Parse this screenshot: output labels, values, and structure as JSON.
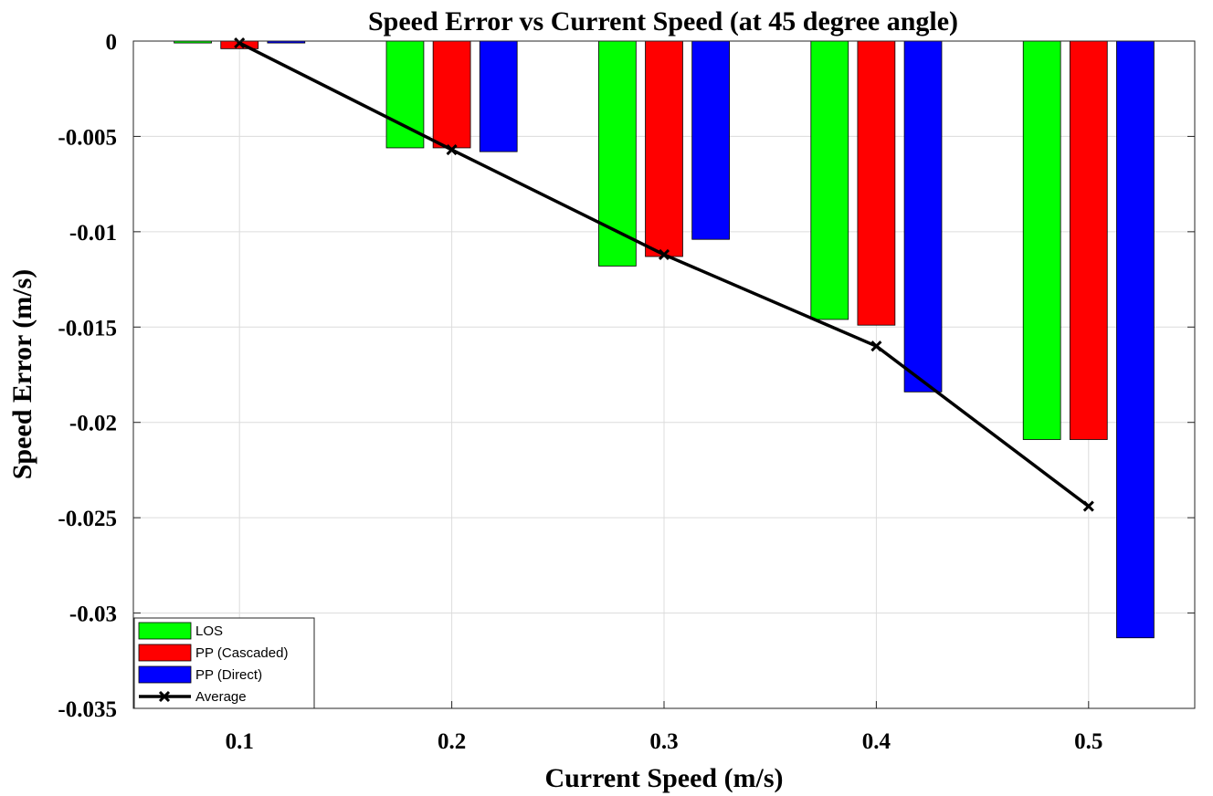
{
  "chart_data": {
    "type": "bar",
    "title": "Speed Error vs Current Speed (at 45 degree angle)",
    "xlabel": "Current Speed (m/s)",
    "ylabel": "Speed Error (m/s)",
    "categories": [
      "0.1",
      "0.2",
      "0.3",
      "0.4",
      "0.5"
    ],
    "x": [
      0.1,
      0.2,
      0.3,
      0.4,
      0.5
    ],
    "xlim": [
      0.05,
      0.55
    ],
    "ylim": [
      -0.035,
      0
    ],
    "yticks": [
      0,
      -0.005,
      -0.01,
      -0.015,
      -0.02,
      -0.025,
      -0.03,
      -0.035
    ],
    "ytick_labels": [
      "0",
      "-0.005",
      "-0.01",
      "-0.015",
      "-0.02",
      "-0.025",
      "-0.03",
      "-0.035"
    ],
    "grid": true,
    "legend_position": "bottom-left",
    "series": [
      {
        "name": "LOS",
        "kind": "bar",
        "color": "#00ff00",
        "values": [
          -0.0001,
          -0.0056,
          -0.0118,
          -0.0146,
          -0.0209
        ]
      },
      {
        "name": "PP (Cascaded)",
        "kind": "bar",
        "color": "#ff0000",
        "values": [
          -0.0004,
          -0.0056,
          -0.0113,
          -0.0149,
          -0.0209
        ]
      },
      {
        "name": "PP (Direct)",
        "kind": "bar",
        "color": "#0000ff",
        "values": [
          -0.0001,
          -0.0058,
          -0.0104,
          -0.0184,
          -0.0313
        ]
      },
      {
        "name": "Average",
        "kind": "line",
        "color": "#000000",
        "marker": "x",
        "values": [
          -0.0001,
          -0.0057,
          -0.0112,
          -0.016,
          -0.0244
        ]
      }
    ]
  }
}
